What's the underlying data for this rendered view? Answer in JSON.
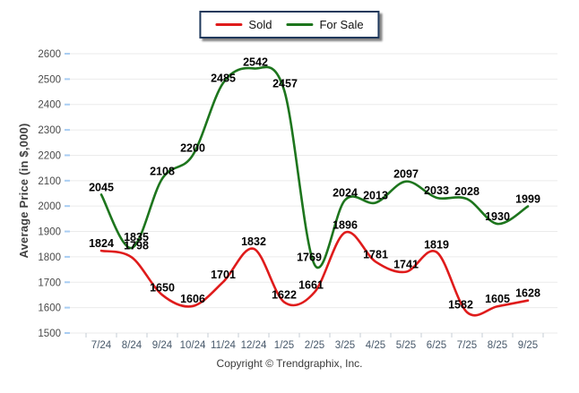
{
  "chart_data": {
    "type": "line",
    "line_style": "smooth",
    "x_categories": [
      "7/24",
      "8/24",
      "9/24",
      "10/24",
      "11/24",
      "12/24",
      "1/25",
      "2/25",
      "3/25",
      "4/25",
      "5/25",
      "6/25",
      "7/25",
      "8/25",
      "9/25"
    ],
    "series": [
      {
        "name": "Sold",
        "color": "#df1b1b",
        "values": [
          1824,
          1798,
          1650,
          1606,
          1701,
          1832,
          1622,
          1661,
          1896,
          1781,
          1741,
          1819,
          1582,
          1605,
          1628
        ]
      },
      {
        "name": "For Sale",
        "color": "#1d751d",
        "values": [
          2045,
          1835,
          2108,
          2200,
          2485,
          2542,
          2457,
          1769,
          2024,
          2013,
          2097,
          2033,
          2028,
          1930,
          1999
        ]
      }
    ],
    "ylabel": "Average Price (in $,000)",
    "xlabel": "",
    "ylim": [
      1500,
      2600
    ],
    "ytick_step": 100,
    "grid": true,
    "point_labels": true,
    "legend_position": "top-center",
    "label_offsets": {
      "Sold": {
        "1": [
          5,
          -9
        ],
        "7": [
          -4,
          -4
        ],
        "12": [
          -7,
          -4
        ]
      },
      "For Sale": {
        "1": [
          5,
          -8
        ],
        "4": [
          0,
          -1
        ],
        "5": [
          2,
          -3
        ],
        "6": [
          1,
          -3
        ],
        "7": [
          -6,
          -4
        ]
      }
    }
  },
  "footer": {
    "copyright": "Copyright © Trendgraphix, Inc."
  },
  "colors": {
    "grid": "#ebebeb",
    "y_tick_mark": "#a9cdf2",
    "x_tick_mark": "#c4ccd4",
    "y_tick_text": "#4a4a4a",
    "x_tick_text": "#47586a",
    "data_label_text": "#000000",
    "legend_border": "#20395c",
    "axis_title_text": "#3f3f3f"
  }
}
